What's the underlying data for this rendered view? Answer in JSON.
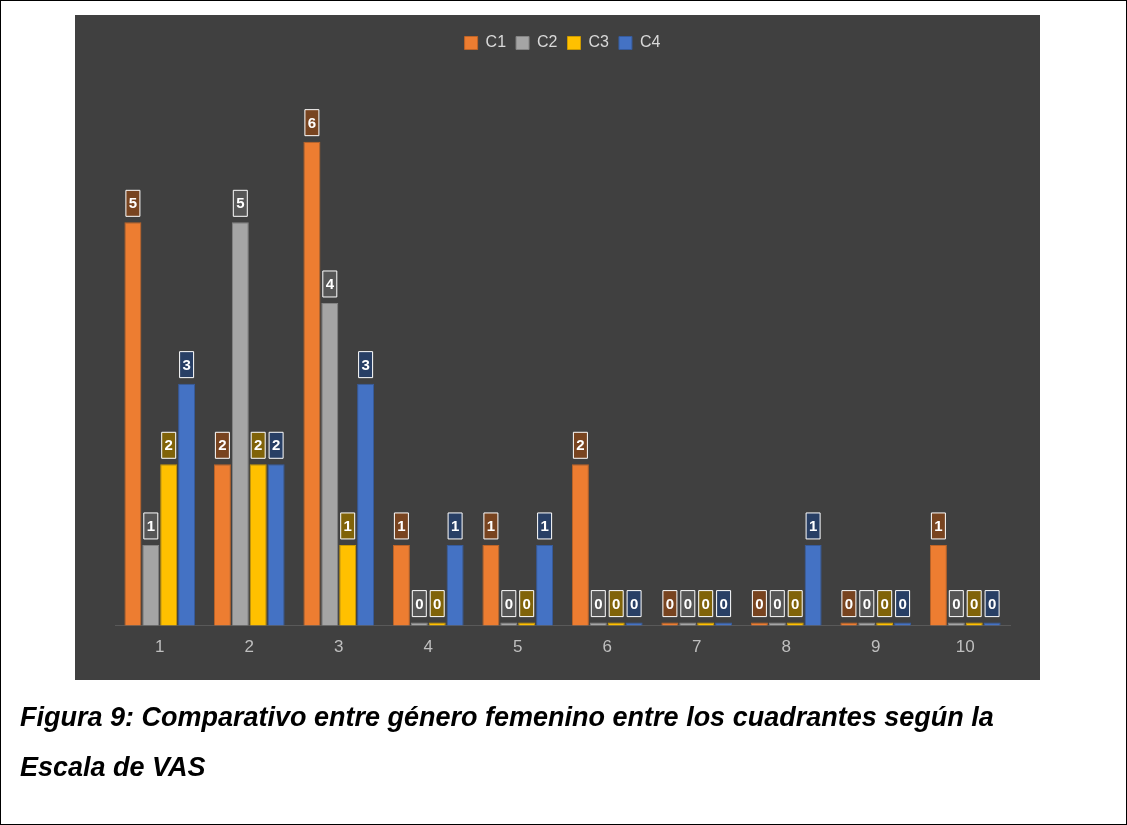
{
  "chart_data": {
    "type": "bar",
    "categories": [
      "1",
      "2",
      "3",
      "4",
      "5",
      "6",
      "7",
      "8",
      "9",
      "10"
    ],
    "series": [
      {
        "name": "C1",
        "color": "#ed7d31",
        "values": [
          5,
          2,
          6,
          1,
          1,
          2,
          0,
          0,
          0,
          1
        ]
      },
      {
        "name": "C2",
        "color": "#a5a5a5",
        "values": [
          1,
          5,
          4,
          0,
          0,
          0,
          0,
          0,
          0,
          0
        ]
      },
      {
        "name": "C3",
        "color": "#ffc000",
        "values": [
          2,
          2,
          1,
          0,
          0,
          0,
          0,
          0,
          0,
          0
        ]
      },
      {
        "name": "C4",
        "color": "#4472c4",
        "values": [
          3,
          2,
          3,
          1,
          1,
          0,
          0,
          1,
          0,
          0
        ]
      }
    ],
    "data_labels": true,
    "grid": false,
    "legend": "top",
    "annotations": [
      "Figura 9: Comparativo entre género femenino entre los cuadrantes según la Escala de VAS"
    ]
  }
}
